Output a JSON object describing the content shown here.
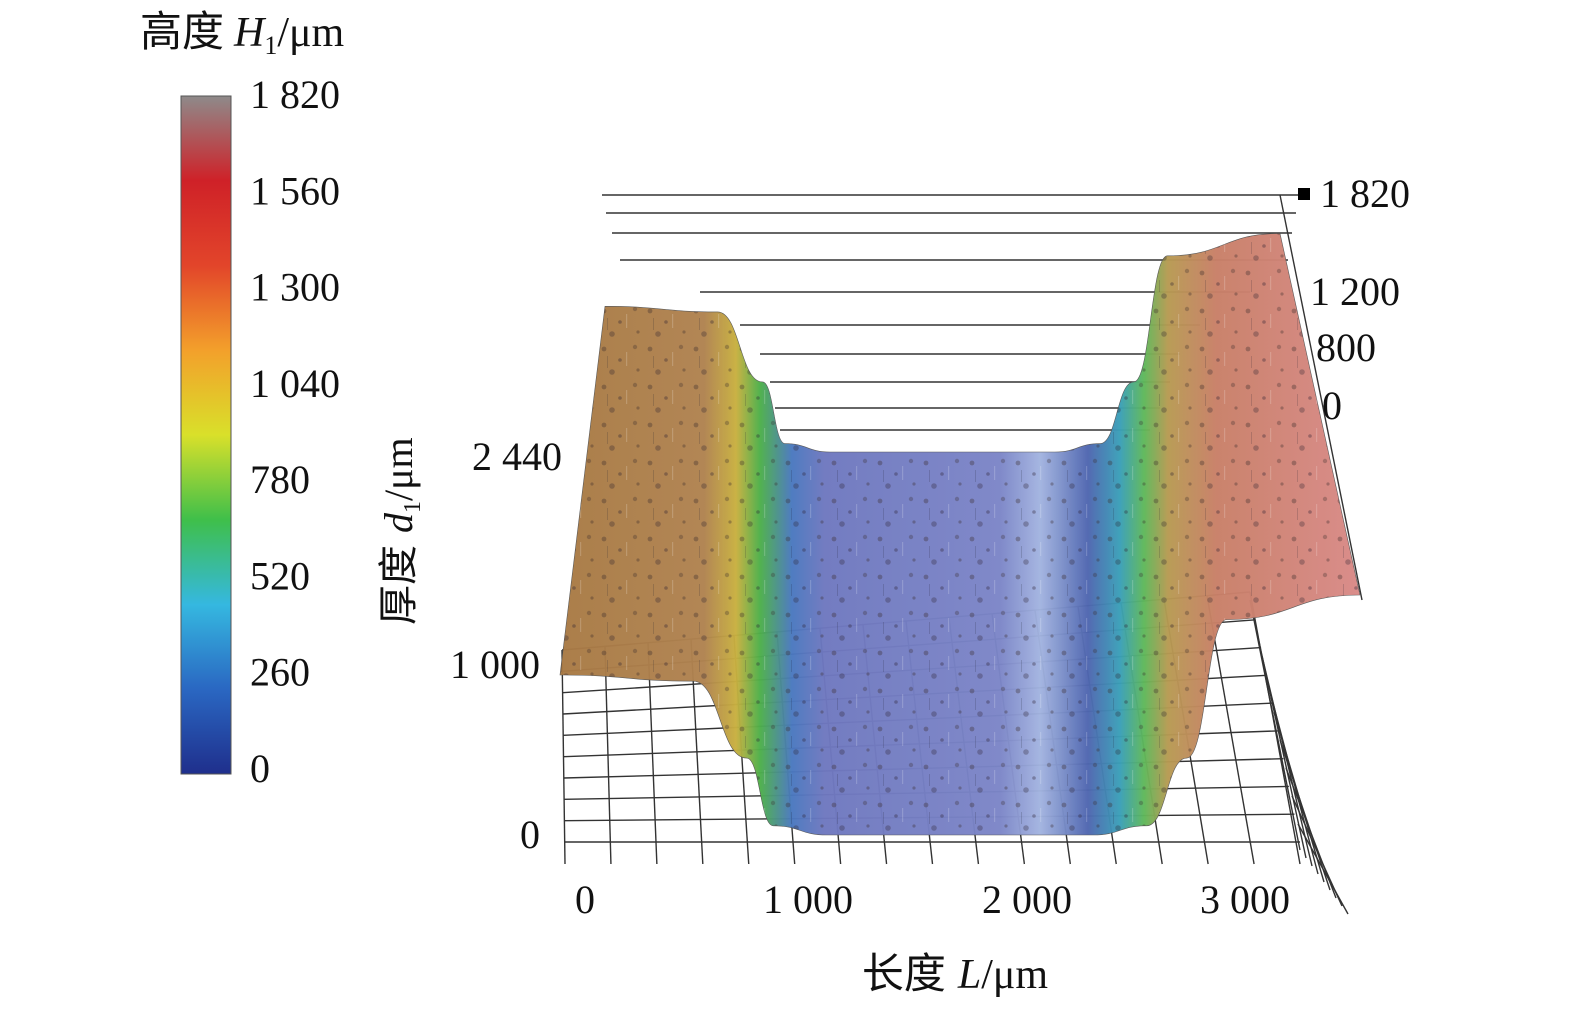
{
  "chart_data": {
    "type": "surface3d",
    "colorbar": {
      "title": "高度",
      "var": "H",
      "sub": "1",
      "unit": "/μm",
      "ticks": [
        "1 820",
        "1 560",
        "1 300",
        "1 040",
        "780",
        "520",
        "260",
        "0"
      ],
      "range": [
        0,
        1820
      ],
      "colors": [
        "#1f2f8c",
        "#2a67c2",
        "#35b8e0",
        "#3fbf4a",
        "#d9e02a",
        "#f3a02b",
        "#e2452a",
        "#cf2128",
        "#8e8a8a"
      ]
    },
    "x_axis": {
      "title": "长度",
      "var": "L",
      "unit": "/μm",
      "ticks": [
        "0",
        "1 000",
        "2 000",
        "3 000"
      ],
      "range": [
        0,
        3000
      ]
    },
    "y_axis": {
      "title": "厚度",
      "var": "d",
      "sub": "1",
      "unit": "/μm",
      "ticks": [
        "0",
        "1 000",
        "2 440"
      ],
      "range": [
        0,
        2440
      ]
    },
    "z_axis": {
      "ticks": [
        "1 820",
        "1 200",
        "800",
        "0"
      ],
      "range": [
        0,
        1820
      ]
    },
    "profile": {
      "length": [
        0,
        500,
        700,
        800,
        1000,
        1500,
        2000,
        2200,
        2350,
        2500,
        3000
      ],
      "height": [
        1040,
        1000,
        500,
        60,
        0,
        0,
        0,
        60,
        500,
        1400,
        1560
      ]
    }
  }
}
